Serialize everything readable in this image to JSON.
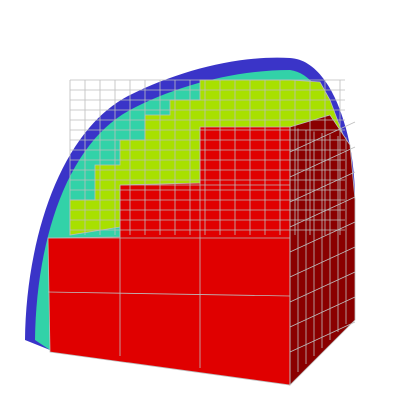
{
  "colors": {
    "background": "#ffffff",
    "outer_blue": "#3a34c8",
    "cyan": "#32d2a8",
    "green": "#a8e000",
    "red": "#e00000",
    "red_dark": "#8a0000",
    "grid": "#bdbdbd"
  }
}
